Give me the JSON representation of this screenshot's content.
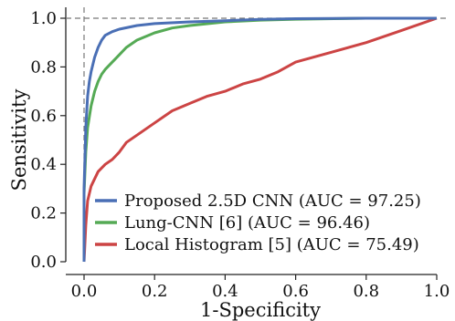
{
  "chart_data": {
    "type": "line",
    "xlabel": "1-Specificity",
    "ylabel": "Sensitivity",
    "xlim": [
      0,
      1
    ],
    "ylim": [
      0,
      1
    ],
    "grid": false,
    "legend_position": "bottom-right",
    "reference_lines": {
      "y": 1.0,
      "x": 0.0,
      "style": "dashed"
    },
    "x_ticks": [
      {
        "value": 0.0,
        "label": "0.0"
      },
      {
        "value": 0.2,
        "label": "0.2"
      },
      {
        "value": 0.4,
        "label": "0.4"
      },
      {
        "value": 0.6,
        "label": "0.6"
      },
      {
        "value": 0.8,
        "label": "0.8"
      },
      {
        "value": 1.0,
        "label": "1.0"
      }
    ],
    "y_ticks": [
      {
        "value": 0.0,
        "label": "0.0"
      },
      {
        "value": 0.2,
        "label": "0.2"
      },
      {
        "value": 0.4,
        "label": "0.4"
      },
      {
        "value": 0.6,
        "label": "0.6"
      },
      {
        "value": 0.8,
        "label": "0.8"
      },
      {
        "value": 1.0,
        "label": "1.0"
      }
    ],
    "series": [
      {
        "name": "Proposed 2.5D CNN (AUC = 97.25)",
        "color": "#4a6fb5",
        "points": [
          [
            0,
            0
          ],
          [
            0,
            0.3
          ],
          [
            0.005,
            0.55
          ],
          [
            0.01,
            0.68
          ],
          [
            0.015,
            0.74
          ],
          [
            0.02,
            0.78
          ],
          [
            0.03,
            0.84
          ],
          [
            0.04,
            0.88
          ],
          [
            0.05,
            0.91
          ],
          [
            0.06,
            0.93
          ],
          [
            0.08,
            0.945
          ],
          [
            0.1,
            0.955
          ],
          [
            0.15,
            0.97
          ],
          [
            0.2,
            0.978
          ],
          [
            0.3,
            0.985
          ],
          [
            0.4,
            0.99
          ],
          [
            0.5,
            0.995
          ],
          [
            0.6,
            0.998
          ],
          [
            0.8,
            1.0
          ],
          [
            1.0,
            1.0
          ]
        ]
      },
      {
        "name": "Lung-CNN [6] (AUC = 96.46)",
        "color": "#55aa55",
        "points": [
          [
            0,
            0
          ],
          [
            0,
            0.28
          ],
          [
            0.005,
            0.45
          ],
          [
            0.01,
            0.55
          ],
          [
            0.02,
            0.64
          ],
          [
            0.03,
            0.7
          ],
          [
            0.04,
            0.74
          ],
          [
            0.05,
            0.77
          ],
          [
            0.06,
            0.79
          ],
          [
            0.08,
            0.82
          ],
          [
            0.1,
            0.85
          ],
          [
            0.12,
            0.88
          ],
          [
            0.15,
            0.91
          ],
          [
            0.2,
            0.94
          ],
          [
            0.25,
            0.96
          ],
          [
            0.3,
            0.97
          ],
          [
            0.4,
            0.985
          ],
          [
            0.5,
            0.992
          ],
          [
            0.6,
            0.996
          ],
          [
            0.8,
            1.0
          ],
          [
            1.0,
            1.0
          ]
        ]
      },
      {
        "name": "Local Histogram [5] (AUC = 75.49)",
        "color": "#cc4444",
        "points": [
          [
            0,
            0
          ],
          [
            0.005,
            0.15
          ],
          [
            0.01,
            0.25
          ],
          [
            0.02,
            0.31
          ],
          [
            0.04,
            0.37
          ],
          [
            0.06,
            0.4
          ],
          [
            0.08,
            0.42
          ],
          [
            0.1,
            0.45
          ],
          [
            0.12,
            0.49
          ],
          [
            0.15,
            0.52
          ],
          [
            0.2,
            0.57
          ],
          [
            0.25,
            0.62
          ],
          [
            0.3,
            0.65
          ],
          [
            0.35,
            0.68
          ],
          [
            0.4,
            0.7
          ],
          [
            0.45,
            0.73
          ],
          [
            0.5,
            0.75
          ],
          [
            0.55,
            0.78
          ],
          [
            0.6,
            0.82
          ],
          [
            0.7,
            0.86
          ],
          [
            0.8,
            0.9
          ],
          [
            0.9,
            0.95
          ],
          [
            1.0,
            1.0
          ]
        ]
      }
    ]
  }
}
